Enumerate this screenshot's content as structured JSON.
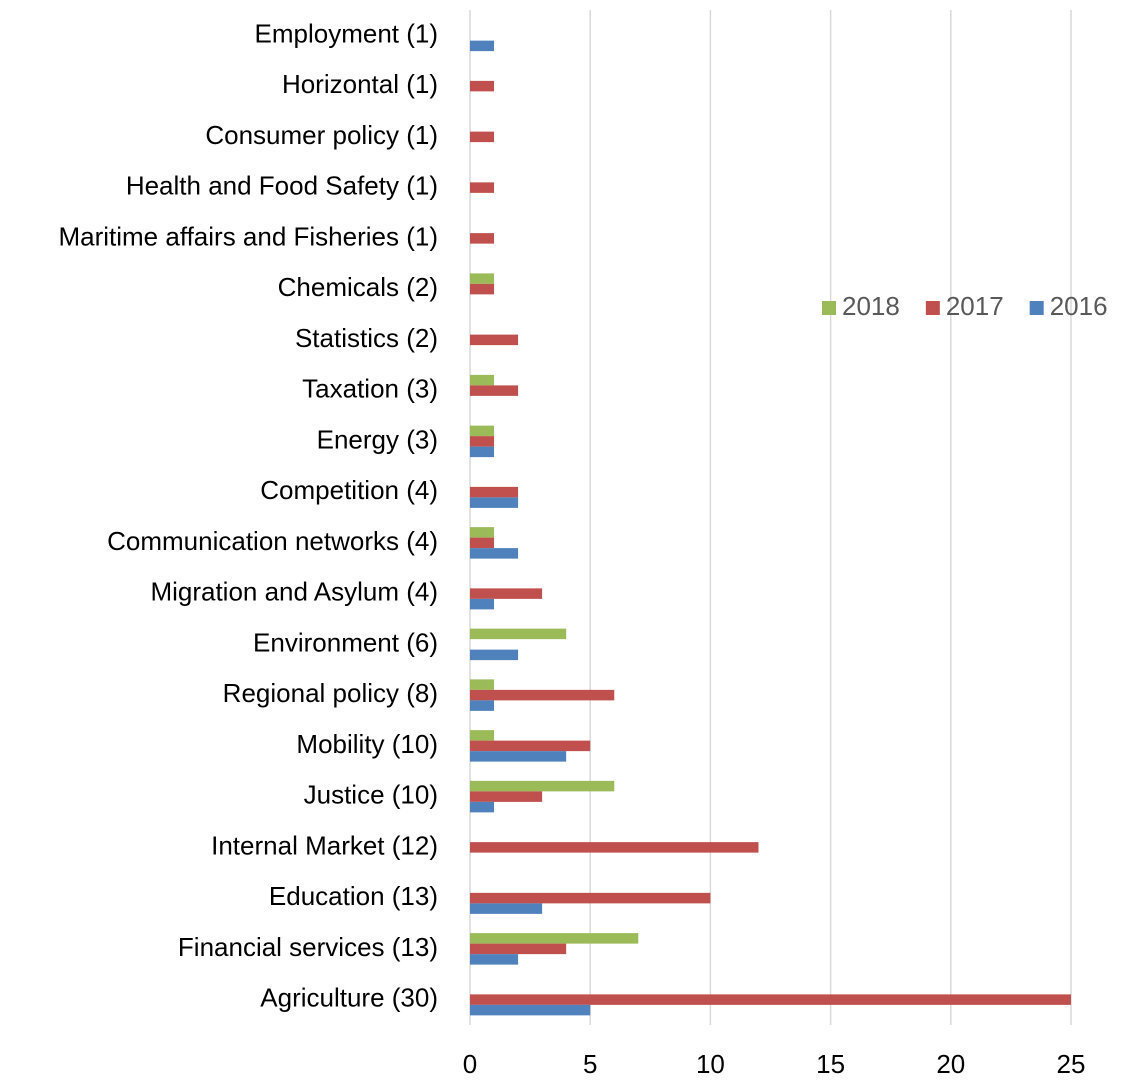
{
  "chart_data": {
    "type": "hbar",
    "categories": [
      "Employment  (1)",
      "Horizontal  (1)",
      "Consumer policy (1)",
      "Health and Food Safety (1)",
      "Maritime affairs and Fisheries (1)",
      "Chemicals (2)",
      "Statistics (2)",
      "Taxation (3)",
      "Energy  (3)",
      "Competition  (4)",
      "Communication networks  (4)",
      "Migration and Asylum (4)",
      "Environment (6)",
      "Regional policy (8)",
      "Mobility (10)",
      "Justice (10)",
      "Internal Market (12)",
      "Education (13)",
      "Financial services (13)",
      "Agriculture (30)"
    ],
    "series": [
      {
        "name": "2018",
        "color": "#9bbb59",
        "values": [
          0,
          0,
          0,
          0,
          0,
          1,
          0,
          1,
          1,
          0,
          1,
          0,
          4,
          1,
          1,
          6,
          0,
          0,
          7,
          0
        ]
      },
      {
        "name": "2017",
        "color": "#c0504d",
        "values": [
          0,
          1,
          1,
          1,
          1,
          1,
          2,
          2,
          1,
          2,
          1,
          3,
          0,
          6,
          5,
          3,
          12,
          10,
          4,
          25
        ]
      },
      {
        "name": "2016",
        "color": "#4f81bd",
        "values": [
          1,
          0,
          0,
          0,
          0,
          0,
          0,
          0,
          1,
          2,
          2,
          1,
          2,
          1,
          4,
          1,
          0,
          3,
          2,
          5
        ]
      }
    ],
    "xlim": [
      0,
      25
    ],
    "xticks": [
      0,
      5,
      10,
      15,
      20,
      25
    ],
    "grid": true,
    "legend": "right"
  }
}
